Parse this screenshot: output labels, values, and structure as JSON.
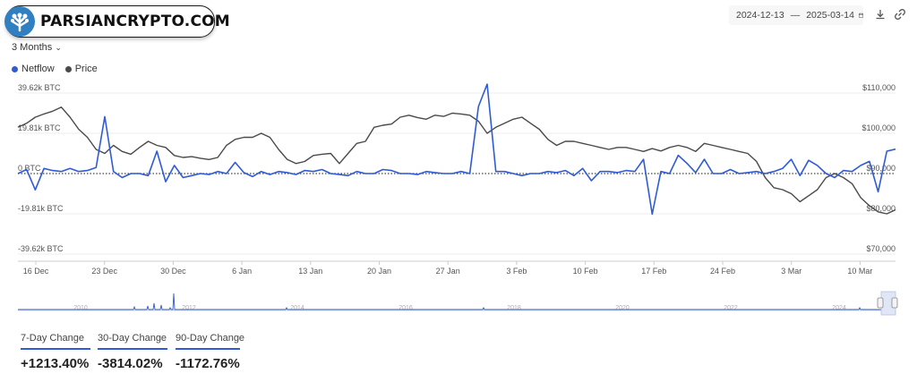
{
  "brand": {
    "name": "PARSIANCRYPTO.COM"
  },
  "controls": {
    "range_label": "3 Months",
    "start_date": "2024-12-13",
    "end_date": "2025-03-14",
    "date_separator": "—"
  },
  "legend": {
    "netflow": "Netflow",
    "price": "Price"
  },
  "colors": {
    "netflow": "#2f5bd6",
    "price": "#4a4a4a",
    "accent": "#2f5bd6"
  },
  "icons": {
    "calendar": "calendar-icon",
    "download": "download-icon",
    "link": "link-icon"
  },
  "chart_data": {
    "type": "line",
    "left_axis_ticks": [
      "39.62k BTC",
      "19.81k BTC",
      "0 BTC",
      "-19.81k BTC",
      "-39.62k BTC"
    ],
    "left_axis_values": [
      39620,
      19810,
      0,
      -19810,
      -39620
    ],
    "right_axis_ticks": [
      "$110,000",
      "$100,000",
      "$90,000",
      "$80,000",
      "$70,000"
    ],
    "right_axis_values": [
      110000,
      100000,
      90000,
      80000,
      70000
    ],
    "x_ticks": [
      "16 Dec",
      "23 Dec",
      "30 Dec",
      "6 Jan",
      "13 Jan",
      "20 Jan",
      "27 Jan",
      "3 Feb",
      "10 Feb",
      "17 Feb",
      "24 Feb",
      "3 Mar",
      "10 Mar"
    ],
    "ylim_left": [
      -39620,
      39620
    ],
    "ylim_right": [
      70000,
      110000
    ],
    "zero_line": "dotted",
    "series": [
      {
        "name": "Netflow",
        "axis": "left",
        "values": [
          0,
          2000,
          -8000,
          2500,
          1500,
          1000,
          2500,
          1000,
          1500,
          3000,
          28000,
          1000,
          -2000,
          0,
          0,
          -1000,
          11000,
          -4000,
          4000,
          -2000,
          -1000,
          0,
          -500,
          1000,
          0,
          5500,
          500,
          -1500,
          1000,
          -500,
          1000,
          500,
          -500,
          1500,
          1000,
          2000,
          0,
          -500,
          -1000,
          1000,
          0,
          0,
          2000,
          1500,
          0,
          0,
          -500,
          1000,
          500,
          0,
          0,
          1000,
          0,
          33000,
          44000,
          1000,
          1000,
          0,
          -1000,
          0,
          0,
          1000,
          500,
          1500,
          -1000,
          2500,
          -3500,
          1000,
          1000,
          500,
          1500,
          1000,
          7000,
          -20000,
          1000,
          0,
          9000,
          5000,
          500,
          7000,
          0,
          0,
          2000,
          0,
          500,
          1000,
          0,
          1000,
          2500,
          7000,
          -1000,
          6500,
          4000,
          0,
          -2000,
          1500,
          1000,
          4000,
          6000,
          -9000,
          11000,
          12000
        ]
      },
      {
        "name": "Price",
        "axis": "right",
        "values": [
          101500,
          102500,
          104000,
          104800,
          105500,
          106500,
          104000,
          101000,
          99000,
          96000,
          95000,
          97000,
          95500,
          94800,
          96500,
          98000,
          97000,
          96500,
          94500,
          94000,
          94200,
          93800,
          93500,
          94000,
          97000,
          98500,
          99000,
          99000,
          100000,
          99000,
          96000,
          93500,
          92500,
          93000,
          94500,
          94800,
          95000,
          92500,
          95000,
          97500,
          98000,
          101500,
          102000,
          102300,
          104000,
          104500,
          103900,
          103500,
          104500,
          104200,
          105000,
          104800,
          104500,
          103000,
          100000,
          101500,
          102500,
          103500,
          104000,
          102500,
          101000,
          98500,
          97000,
          98000,
          98000,
          97500,
          97000,
          96500,
          96000,
          96500,
          96500,
          96000,
          95500,
          96200,
          95600,
          96500,
          97000,
          96500,
          95500,
          97500,
          97000,
          96500,
          96000,
          95500,
          95000,
          93000,
          89000,
          86500,
          86000,
          85000,
          83000,
          84500,
          86000,
          89000,
          90000,
          89000,
          87500,
          84000,
          82000,
          80500,
          80000,
          81000
        ]
      }
    ]
  },
  "navigator": {
    "year_labels": [
      "2010",
      "2012",
      "2014",
      "2016",
      "2018",
      "2020",
      "2022",
      "2024"
    ]
  },
  "stats": [
    {
      "label": "7-Day Change",
      "value": "+1213.40%"
    },
    {
      "label": "30-Day Change",
      "value": "-3814.02%"
    },
    {
      "label": "90-Day Change",
      "value": "-1172.76%"
    }
  ]
}
